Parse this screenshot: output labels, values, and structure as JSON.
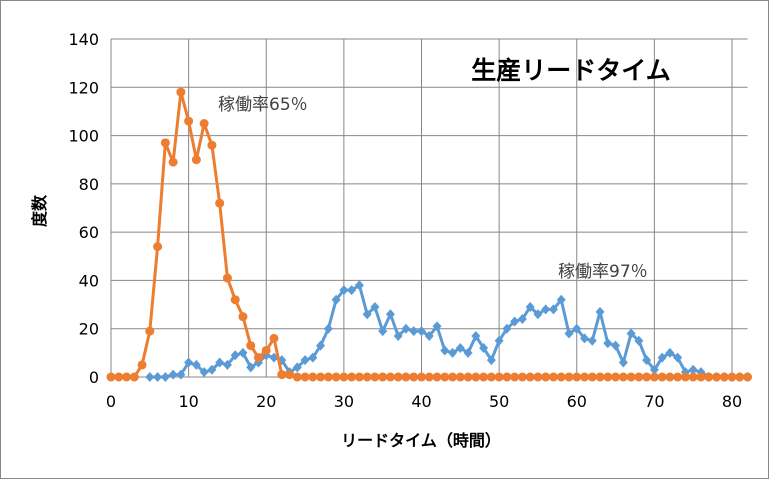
{
  "chart_data": {
    "type": "line",
    "title": "生産リードタイム",
    "xlabel": "リードタイム（時間）",
    "ylabel": "度数",
    "xlim": [
      0,
      82
    ],
    "ylim": [
      0,
      140
    ],
    "xticks": [
      0,
      10,
      20,
      30,
      40,
      50,
      60,
      70,
      80
    ],
    "yticks": [
      0,
      20,
      40,
      60,
      80,
      100,
      120,
      140
    ],
    "grid": true,
    "annotations": [
      {
        "text": "稼働率65％",
        "x": 20,
        "y": 112
      },
      {
        "text": "稼働率97％",
        "x": 62,
        "y": 42
      }
    ],
    "series": [
      {
        "name": "稼働率97％",
        "color": "#5B9BD5",
        "marker": "diamond",
        "x_start": 5,
        "values": [
          0,
          0,
          0,
          1,
          1,
          6,
          5,
          2,
          3,
          6,
          5,
          9,
          10,
          4,
          6,
          9,
          8,
          7,
          2,
          4,
          7,
          8,
          13,
          20,
          32,
          36,
          36,
          38,
          26,
          29,
          19,
          26,
          17,
          20,
          19,
          19,
          17,
          21,
          11,
          10,
          12,
          10,
          17,
          12,
          7,
          15,
          20,
          23,
          24,
          29,
          26,
          28,
          28,
          32,
          18,
          20,
          16,
          15,
          27,
          14,
          13,
          6,
          18,
          15,
          7,
          3,
          8,
          10,
          8,
          2,
          3,
          2,
          0,
          0,
          0,
          0,
          0,
          0
        ]
      },
      {
        "name": "稼働率65％",
        "color": "#ED7D31",
        "marker": "circle",
        "x_start": 0,
        "values": [
          0,
          0,
          0,
          0,
          5,
          19,
          54,
          97,
          89,
          118,
          106,
          90,
          105,
          96,
          72,
          41,
          32,
          25,
          13,
          8,
          11,
          16,
          1,
          1,
          0,
          0,
          0,
          0,
          0,
          0,
          0,
          0,
          0,
          0,
          0,
          0,
          0,
          0,
          0,
          0,
          0,
          0,
          0,
          0,
          0,
          0,
          0,
          0,
          0,
          0,
          0,
          0,
          0,
          0,
          0,
          0,
          0,
          0,
          0,
          0,
          0,
          0,
          0,
          0,
          0,
          0,
          0,
          0,
          0,
          0,
          0,
          0,
          0,
          0,
          0,
          0,
          0,
          0,
          0,
          0,
          0,
          0,
          0
        ]
      }
    ]
  }
}
